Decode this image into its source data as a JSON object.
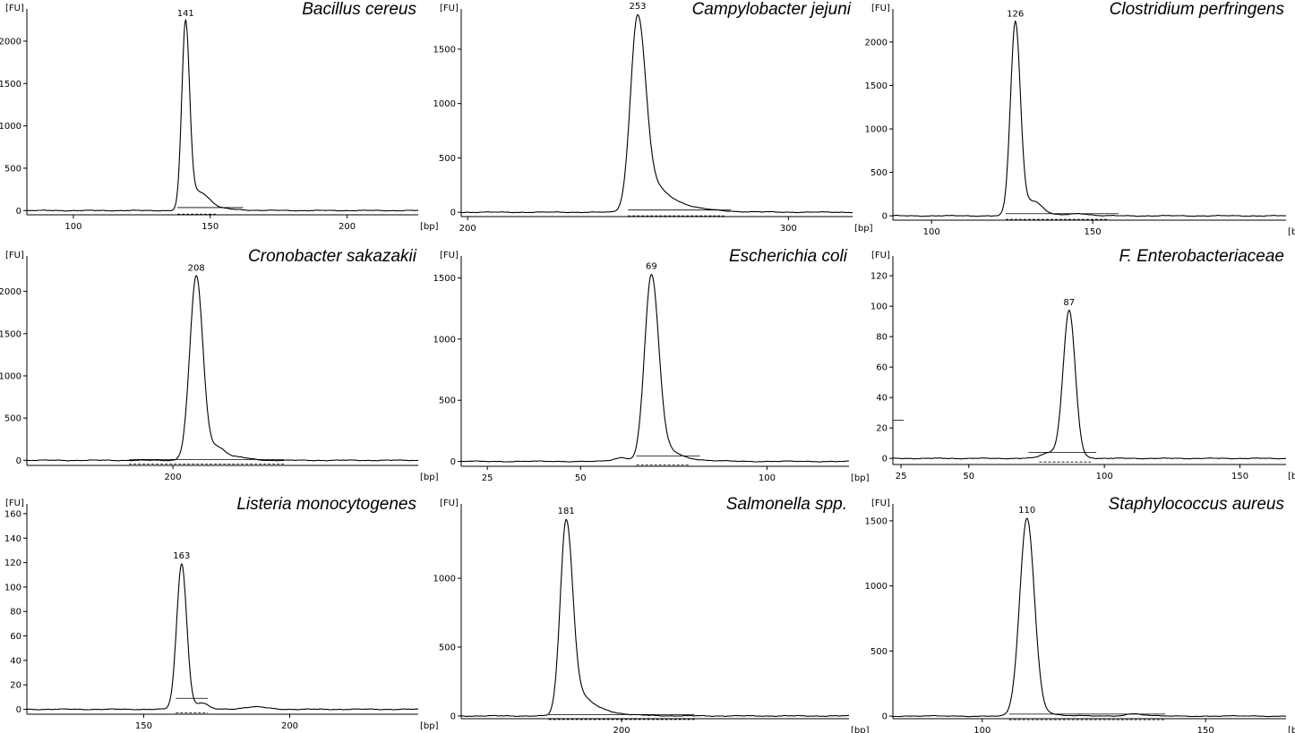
{
  "chart_data": [
    {
      "type": "line",
      "title": "Bacillus cereus",
      "xlabel": "[bp]",
      "ylabel": "[FU]",
      "xlim": [
        83,
        226
      ],
      "ylim": [
        -50,
        2380
      ],
      "xticks": [
        100,
        150,
        200
      ],
      "yticks": [
        0,
        500,
        1000,
        1500,
        2000
      ],
      "peak": {
        "x": 141,
        "y": 2230,
        "label": "141",
        "sigma": 1.4,
        "tail": 6,
        "tailAmp": 0.12
      },
      "bumps": [
        {
          "x": 147,
          "y": 115,
          "s": 3.0
        }
      ],
      "baseline": {
        "x": [
          138,
          162
        ],
        "y": 35,
        "style": "solid"
      },
      "baseline2": {
        "x": [
          138,
          152
        ],
        "style": "dashed"
      }
    },
    {
      "type": "line",
      "title": "Campylobacter jejuni",
      "xlabel": "[bp]",
      "ylabel": "[FU]",
      "xlim": [
        198,
        320
      ],
      "ylim": [
        -40,
        1870
      ],
      "xticks": [
        200,
        300
      ],
      "yticks": [
        0,
        500,
        1000,
        1500
      ],
      "peak": {
        "x": 253,
        "y": 1820,
        "label": "253",
        "sigma": 2.2,
        "tail": 7,
        "tailAmp": 0.35
      },
      "bumps": [],
      "baseline": {
        "x": [
          250,
          282
        ],
        "y": 20,
        "style": "solid"
      },
      "baseline2": {
        "x": [
          250,
          280
        ],
        "style": "dashed"
      }
    },
    {
      "type": "line",
      "title": "Clostridium perfringens",
      "xlabel": "[bp]",
      "ylabel": "[FU]",
      "xlim": [
        88,
        210
      ],
      "ylim": [
        -50,
        2380
      ],
      "xticks": [
        100,
        150
      ],
      "yticks": [
        0,
        500,
        1000,
        1500,
        2000
      ],
      "peak": {
        "x": 126,
        "y": 2230,
        "label": "126",
        "sigma": 1.5,
        "tail": 4,
        "tailAmp": 0.1
      },
      "bumps": [
        {
          "x": 132,
          "y": 120,
          "s": 2.5
        },
        {
          "x": 146,
          "y": 25,
          "s": 3
        }
      ],
      "baseline": {
        "x": [
          123,
          158
        ],
        "y": 25,
        "style": "solid"
      },
      "baseline2": {
        "x": [
          123,
          155
        ],
        "style": "dashed"
      }
    },
    {
      "type": "line",
      "title": "Cronobacter sakazakii",
      "xlabel": "[bp]",
      "ylabel": "[FU]",
      "xlim": [
        150,
        284
      ],
      "ylim": [
        -60,
        2420
      ],
      "xticks": [
        200
      ],
      "yticks": [
        0,
        500,
        1000,
        1500,
        2000
      ],
      "peak": {
        "x": 208,
        "y": 2180,
        "label": "208",
        "sigma": 2.2,
        "tail": 3,
        "tailAmp": 0.08
      },
      "bumps": [
        {
          "x": 215,
          "y": 140,
          "s": 2.8
        },
        {
          "x": 222,
          "y": 35,
          "s": 4
        }
      ],
      "baseline": {
        "x": [
          185,
          238
        ],
        "y": 10,
        "style": "solid"
      },
      "baseline2": {
        "x": [
          185,
          238
        ],
        "style": "dashed"
      }
    },
    {
      "type": "line",
      "title": "Escherichia coli",
      "xlabel": "[bp]",
      "ylabel": "[FU]",
      "xlim": [
        18,
        122
      ],
      "ylim": [
        -40,
        1680
      ],
      "xticks": [
        25,
        50,
        100
      ],
      "yticks": [
        0,
        500,
        1000,
        1500
      ],
      "peak": {
        "x": 69,
        "y": 1530,
        "label": "69",
        "sigma": 1.8,
        "tail": 4,
        "tailAmp": 0.25
      },
      "bumps": [
        {
          "x": 61,
          "y": 30,
          "s": 2
        }
      ],
      "baseline": {
        "x": [
          65,
          82
        ],
        "y": 45,
        "style": "solid"
      },
      "baseline2": {
        "x": [
          65,
          79
        ],
        "style": "dashed"
      }
    },
    {
      "type": "line",
      "title": "F. Enterobacteriaceae",
      "xlabel": "[bp]",
      "ylabel": "[FU]",
      "xlim": [
        22,
        167
      ],
      "ylim": [
        -4,
        133
      ],
      "xticks": [
        25,
        50,
        100,
        150
      ],
      "yticks": [
        0,
        20,
        40,
        60,
        80,
        100,
        120
      ],
      "peak": {
        "x": 87,
        "y": 97,
        "label": "87",
        "sigma": 2.2,
        "tail": 3,
        "tailAmp": 0.06
      },
      "bumps": [
        {
          "x": 80,
          "y": 4,
          "s": 3
        }
      ],
      "baseline": {
        "x": [
          72,
          97
        ],
        "y": 4,
        "style": "solid"
      },
      "baseline2": {
        "x": [
          76,
          95
        ],
        "style": "dashed"
      },
      "marker": {
        "x": [
          22,
          26
        ],
        "y": 25
      }
    },
    {
      "type": "line",
      "title": "Listeria monocytogenes",
      "xlabel": "[bp]",
      "ylabel": "[FU]",
      "xlim": [
        110,
        244
      ],
      "ylim": [
        -4,
        168
      ],
      "xticks": [
        150,
        200
      ],
      "yticks": [
        0,
        20,
        40,
        60,
        80,
        100,
        120,
        140,
        160
      ],
      "peak": {
        "x": 163,
        "y": 119,
        "label": "163",
        "sigma": 1.7,
        "tail": 2,
        "tailAmp": 0.08
      },
      "bumps": [
        {
          "x": 170,
          "y": 5,
          "s": 2
        },
        {
          "x": 188,
          "y": 2,
          "s": 4
        }
      ],
      "baseline": {
        "x": [
          161,
          172
        ],
        "y": 9,
        "style": "solid"
      },
      "baseline2": {
        "x": [
          161,
          172
        ],
        "style": "dashed"
      }
    },
    {
      "type": "line",
      "title": "Salmonella spp.",
      "xlabel": "[bp]",
      "ylabel": "[FU]",
      "xlim": [
        145,
        278
      ],
      "ylim": [
        -20,
        1540
      ],
      "xticks": [
        200
      ],
      "yticks": [
        0,
        500,
        1000
      ],
      "peak": {
        "x": 181,
        "y": 1430,
        "label": "181",
        "sigma": 2.0,
        "tail": 6,
        "tailAmp": 0.3
      },
      "bumps": [],
      "baseline": {
        "x": [
          175,
          225
        ],
        "y": 10,
        "style": "solid"
      },
      "baseline2": {
        "x": [
          175,
          225
        ],
        "style": "dashed"
      }
    },
    {
      "type": "line",
      "title": "Staphylococcus aureus",
      "xlabel": "[bp]",
      "ylabel": "[FU]",
      "xlim": [
        80,
        168
      ],
      "ylim": [
        -20,
        1630
      ],
      "xticks": [
        100,
        150
      ],
      "yticks": [
        0,
        500,
        1000,
        1500
      ],
      "peak": {
        "x": 110,
        "y": 1520,
        "label": "110",
        "sigma": 1.6,
        "tail": 2.5,
        "tailAmp": 0.12
      },
      "bumps": [
        {
          "x": 134,
          "y": 18,
          "s": 2
        }
      ],
      "baseline": {
        "x": [
          106,
          141
        ],
        "y": 15,
        "style": "solid"
      },
      "baseline2": {
        "x": [
          106,
          141
        ],
        "style": "dashed"
      }
    }
  ]
}
